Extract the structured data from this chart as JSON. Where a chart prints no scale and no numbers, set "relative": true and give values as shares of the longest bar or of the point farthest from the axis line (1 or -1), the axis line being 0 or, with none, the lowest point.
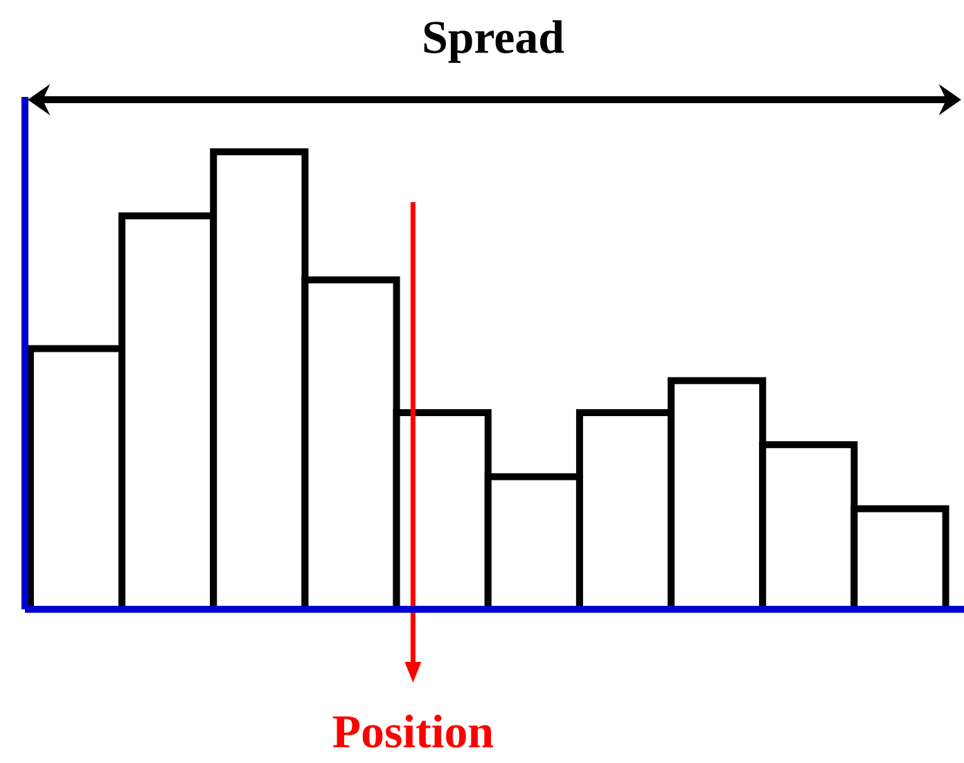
{
  "chart_data": {
    "type": "bar",
    "title": "Spread",
    "relative": true,
    "categories": [
      null,
      null,
      null,
      null,
      null,
      null,
      null,
      null,
      null,
      null
    ],
    "values": [
      0.57,
      0.86,
      1,
      0.72,
      0.43,
      0.29,
      0.43,
      0.5,
      0.36,
      0.22
    ],
    "color": "#ffffff",
    "annotations": [
      "Position"
    ]
  }
}
